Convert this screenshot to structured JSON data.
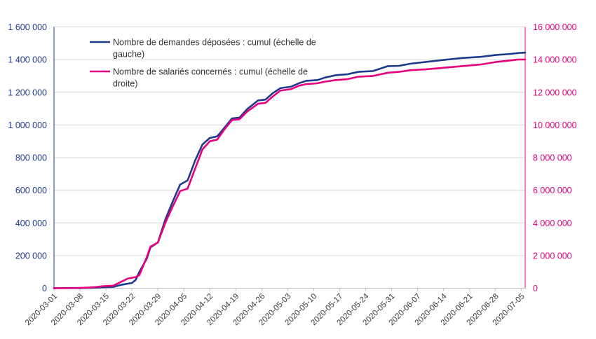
{
  "chart_data": {
    "type": "line",
    "x_ticks": [
      "2020-03-01",
      "2020-03-08",
      "2020-03-15",
      "2020-03-22",
      "2020-03-29",
      "2020-04-05",
      "2020-04-12",
      "2020-04-19",
      "2020-04-26",
      "2020-05-03",
      "2020-05-10",
      "2020-05-17",
      "2020-05-24",
      "2020-05-31",
      "2020-06-07",
      "2020-06-14",
      "2020-06-21",
      "2020-06-28",
      "2020-07-05"
    ],
    "y_left": {
      "ylim": [
        0,
        1600000
      ],
      "ticks": [
        0,
        200000,
        400000,
        600000,
        800000,
        1000000,
        1200000,
        1400000,
        1600000
      ],
      "tick_labels": [
        "0",
        "200 000",
        "400 000",
        "600 000",
        "800 000",
        "1 000 000",
        "1 200 000",
        "1 400 000",
        "1 600 000"
      ]
    },
    "y_right": {
      "ylim": [
        0,
        16000000
      ],
      "ticks": [
        0,
        2000000,
        4000000,
        6000000,
        8000000,
        10000000,
        12000000,
        14000000,
        16000000
      ],
      "tick_labels": [
        "0",
        "2 000 000",
        "4 000 000",
        "6 000 000",
        "8 000 000",
        "10 000 000",
        "12 000 000",
        "14 000 000",
        "16 000 000"
      ]
    },
    "legend_position": "top-left",
    "series": [
      {
        "name": "Nombre de demandes déposées : cumul (échelle de gauche)",
        "legend_lines": [
          "Nombre de demandes déposées : cumul (échelle de",
          "gauche)"
        ],
        "axis": "left",
        "color": "#1f3a8a",
        "points": [
          [
            "2020-03-01",
            0
          ],
          [
            "2020-03-08",
            1000
          ],
          [
            "2020-03-12",
            3000
          ],
          [
            "2020-03-15",
            7000
          ],
          [
            "2020-03-17",
            8000
          ],
          [
            "2020-03-19",
            20000
          ],
          [
            "2020-03-22",
            32000
          ],
          [
            "2020-03-23",
            50000
          ],
          [
            "2020-03-24",
            100000
          ],
          [
            "2020-03-26",
            180000
          ],
          [
            "2020-03-27",
            250000
          ],
          [
            "2020-03-29",
            280000
          ],
          [
            "2020-03-31",
            420000
          ],
          [
            "2020-04-02",
            530000
          ],
          [
            "2020-04-04",
            635000
          ],
          [
            "2020-04-06",
            660000
          ],
          [
            "2020-04-08",
            780000
          ],
          [
            "2020-04-10",
            880000
          ],
          [
            "2020-04-12",
            920000
          ],
          [
            "2020-04-14",
            930000
          ],
          [
            "2020-04-16",
            985000
          ],
          [
            "2020-04-18",
            1040000
          ],
          [
            "2020-04-20",
            1045000
          ],
          [
            "2020-04-22",
            1095000
          ],
          [
            "2020-04-25",
            1150000
          ],
          [
            "2020-04-27",
            1155000
          ],
          [
            "2020-04-29",
            1195000
          ],
          [
            "2020-05-01",
            1225000
          ],
          [
            "2020-05-04",
            1235000
          ],
          [
            "2020-05-06",
            1255000
          ],
          [
            "2020-05-08",
            1270000
          ],
          [
            "2020-05-11",
            1275000
          ],
          [
            "2020-05-13",
            1290000
          ],
          [
            "2020-05-16",
            1305000
          ],
          [
            "2020-05-19",
            1310000
          ],
          [
            "2020-05-22",
            1325000
          ],
          [
            "2020-05-26",
            1330000
          ],
          [
            "2020-05-30",
            1360000
          ],
          [
            "2020-06-02",
            1362000
          ],
          [
            "2020-06-05",
            1375000
          ],
          [
            "2020-06-09",
            1385000
          ],
          [
            "2020-06-14",
            1398000
          ],
          [
            "2020-06-19",
            1410000
          ],
          [
            "2020-06-24",
            1417000
          ],
          [
            "2020-06-28",
            1428000
          ],
          [
            "2020-07-02",
            1435000
          ],
          [
            "2020-07-04",
            1440000
          ],
          [
            "2020-07-06",
            1443000
          ]
        ]
      },
      {
        "name": "Nombre de salariés concernés : cumul (échelle de droite)",
        "legend_lines": [
          "Nombre de salariés concernés : cumul (échelle de",
          "droite)"
        ],
        "axis": "right",
        "color": "#e6007e",
        "points": [
          [
            "2020-03-01",
            0
          ],
          [
            "2020-03-08",
            20000
          ],
          [
            "2020-03-12",
            60000
          ],
          [
            "2020-03-14",
            120000
          ],
          [
            "2020-03-17",
            160000
          ],
          [
            "2020-03-19",
            380000
          ],
          [
            "2020-03-21",
            600000
          ],
          [
            "2020-03-23",
            680000
          ],
          [
            "2020-03-24",
            800000
          ],
          [
            "2020-03-26",
            1900000
          ],
          [
            "2020-03-27",
            2550000
          ],
          [
            "2020-03-29",
            2800000
          ],
          [
            "2020-03-31",
            4000000
          ],
          [
            "2020-04-02",
            5000000
          ],
          [
            "2020-04-04",
            5950000
          ],
          [
            "2020-04-06",
            6100000
          ],
          [
            "2020-04-08",
            7300000
          ],
          [
            "2020-04-10",
            8500000
          ],
          [
            "2020-04-12",
            9000000
          ],
          [
            "2020-04-14",
            9100000
          ],
          [
            "2020-04-16",
            9750000
          ],
          [
            "2020-04-18",
            10300000
          ],
          [
            "2020-04-20",
            10350000
          ],
          [
            "2020-04-22",
            10800000
          ],
          [
            "2020-04-25",
            11300000
          ],
          [
            "2020-04-27",
            11350000
          ],
          [
            "2020-04-29",
            11750000
          ],
          [
            "2020-05-01",
            12100000
          ],
          [
            "2020-05-04",
            12200000
          ],
          [
            "2020-05-06",
            12400000
          ],
          [
            "2020-05-08",
            12500000
          ],
          [
            "2020-05-11",
            12550000
          ],
          [
            "2020-05-13",
            12650000
          ],
          [
            "2020-05-16",
            12750000
          ],
          [
            "2020-05-19",
            12800000
          ],
          [
            "2020-05-22",
            12950000
          ],
          [
            "2020-05-26",
            13000000
          ],
          [
            "2020-05-30",
            13200000
          ],
          [
            "2020-06-02",
            13250000
          ],
          [
            "2020-06-05",
            13350000
          ],
          [
            "2020-06-09",
            13400000
          ],
          [
            "2020-06-14",
            13500000
          ],
          [
            "2020-06-19",
            13600000
          ],
          [
            "2020-06-24",
            13700000
          ],
          [
            "2020-06-28",
            13850000
          ],
          [
            "2020-07-02",
            13950000
          ],
          [
            "2020-07-04",
            14000000
          ],
          [
            "2020-07-06",
            14010000
          ]
        ]
      }
    ]
  }
}
